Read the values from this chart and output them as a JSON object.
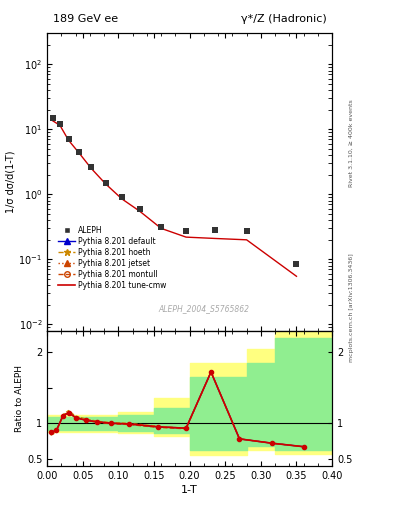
{
  "title_left": "189 GeV ee",
  "title_right": "γ*/Z (Hadronic)",
  "right_label_top": "Rivet 3.1.10, ≥ 400k events",
  "right_label_bot": "mcplots.cern.ch [arXiv:1306.3436]",
  "watermark": "ALEPH_2004_S5765862",
  "ylabel_main": "1/σ dσ/d(1-T)",
  "ylabel_ratio": "Ratio to ALEPH",
  "xlabel": "1-T",
  "xlim": [
    0.0,
    0.4
  ],
  "ylim_main": [
    0.008,
    300
  ],
  "ylim_ratio": [
    0.4,
    2.3
  ],
  "aleph_x": [
    0.008,
    0.018,
    0.03,
    0.045,
    0.062,
    0.082,
    0.105,
    0.13,
    0.16,
    0.195,
    0.235,
    0.28,
    0.35
  ],
  "aleph_y": [
    15.0,
    12.0,
    7.0,
    4.5,
    2.6,
    1.5,
    0.9,
    0.6,
    0.32,
    0.27,
    0.28,
    0.27,
    0.085
  ],
  "cmw_x": [
    0.008,
    0.018,
    0.03,
    0.045,
    0.062,
    0.082,
    0.105,
    0.13,
    0.16,
    0.195,
    0.235,
    0.28,
    0.35
  ],
  "cmw_y": [
    13.5,
    11.5,
    6.8,
    4.3,
    2.5,
    1.45,
    0.85,
    0.55,
    0.3,
    0.22,
    0.21,
    0.2,
    0.055
  ],
  "ratio_x": [
    0.005,
    0.013,
    0.022,
    0.03,
    0.04,
    0.055,
    0.07,
    0.09,
    0.115,
    0.155,
    0.195,
    0.23,
    0.27,
    0.315,
    0.36
  ],
  "ratio_cmw": [
    0.87,
    0.9,
    1.1,
    1.15,
    1.08,
    1.04,
    1.02,
    1.0,
    0.99,
    0.95,
    0.93,
    1.72,
    0.78,
    0.72,
    0.67
  ],
  "ratio_default": [
    0.87,
    0.9,
    1.1,
    1.15,
    1.08,
    1.04,
    1.02,
    1.0,
    0.99,
    0.95,
    0.93,
    1.72,
    0.78,
    0.72,
    0.67
  ],
  "ratio_hoeth": [
    0.83,
    0.87,
    1.12,
    1.18,
    1.1,
    1.06,
    1.03,
    1.01,
    1.0,
    0.96,
    0.93,
    1.72,
    0.78,
    0.72,
    0.67
  ],
  "ratio_jetset": [
    0.84,
    0.89,
    1.11,
    1.16,
    1.09,
    1.05,
    1.02,
    1.0,
    0.99,
    0.95,
    0.93,
    1.72,
    0.78,
    0.72,
    0.67
  ],
  "ratio_montull": [
    0.84,
    0.89,
    1.1,
    1.15,
    1.08,
    1.04,
    1.01,
    0.99,
    0.98,
    0.94,
    0.92,
    1.72,
    0.78,
    0.72,
    0.67
  ],
  "green_color": "#90ee90",
  "yellow_color": "#ffff80",
  "aleph_color": "#333333",
  "cmw_color": "#cc0000",
  "default_color": "#0000cc",
  "hoeth_color": "#cc8800",
  "jetset_color": "#cc4400",
  "montull_color": "#cc4400",
  "band_yellow_edges": [
    0.0,
    0.1,
    0.15,
    0.2,
    0.28,
    0.32,
    0.4
  ],
  "band_yellow_lo": [
    0.88,
    0.86,
    0.82,
    0.55,
    0.62,
    0.57,
    0.57
  ],
  "band_yellow_hi": [
    1.12,
    1.16,
    1.35,
    1.85,
    2.05,
    2.3,
    2.3
  ],
  "band_green_edges": [
    0.0,
    0.1,
    0.15,
    0.2,
    0.28,
    0.32,
    0.4
  ],
  "band_green_lo": [
    0.91,
    0.89,
    0.86,
    0.62,
    0.68,
    0.63,
    0.63
  ],
  "band_green_hi": [
    1.09,
    1.12,
    1.22,
    1.65,
    1.85,
    2.2,
    2.2
  ]
}
